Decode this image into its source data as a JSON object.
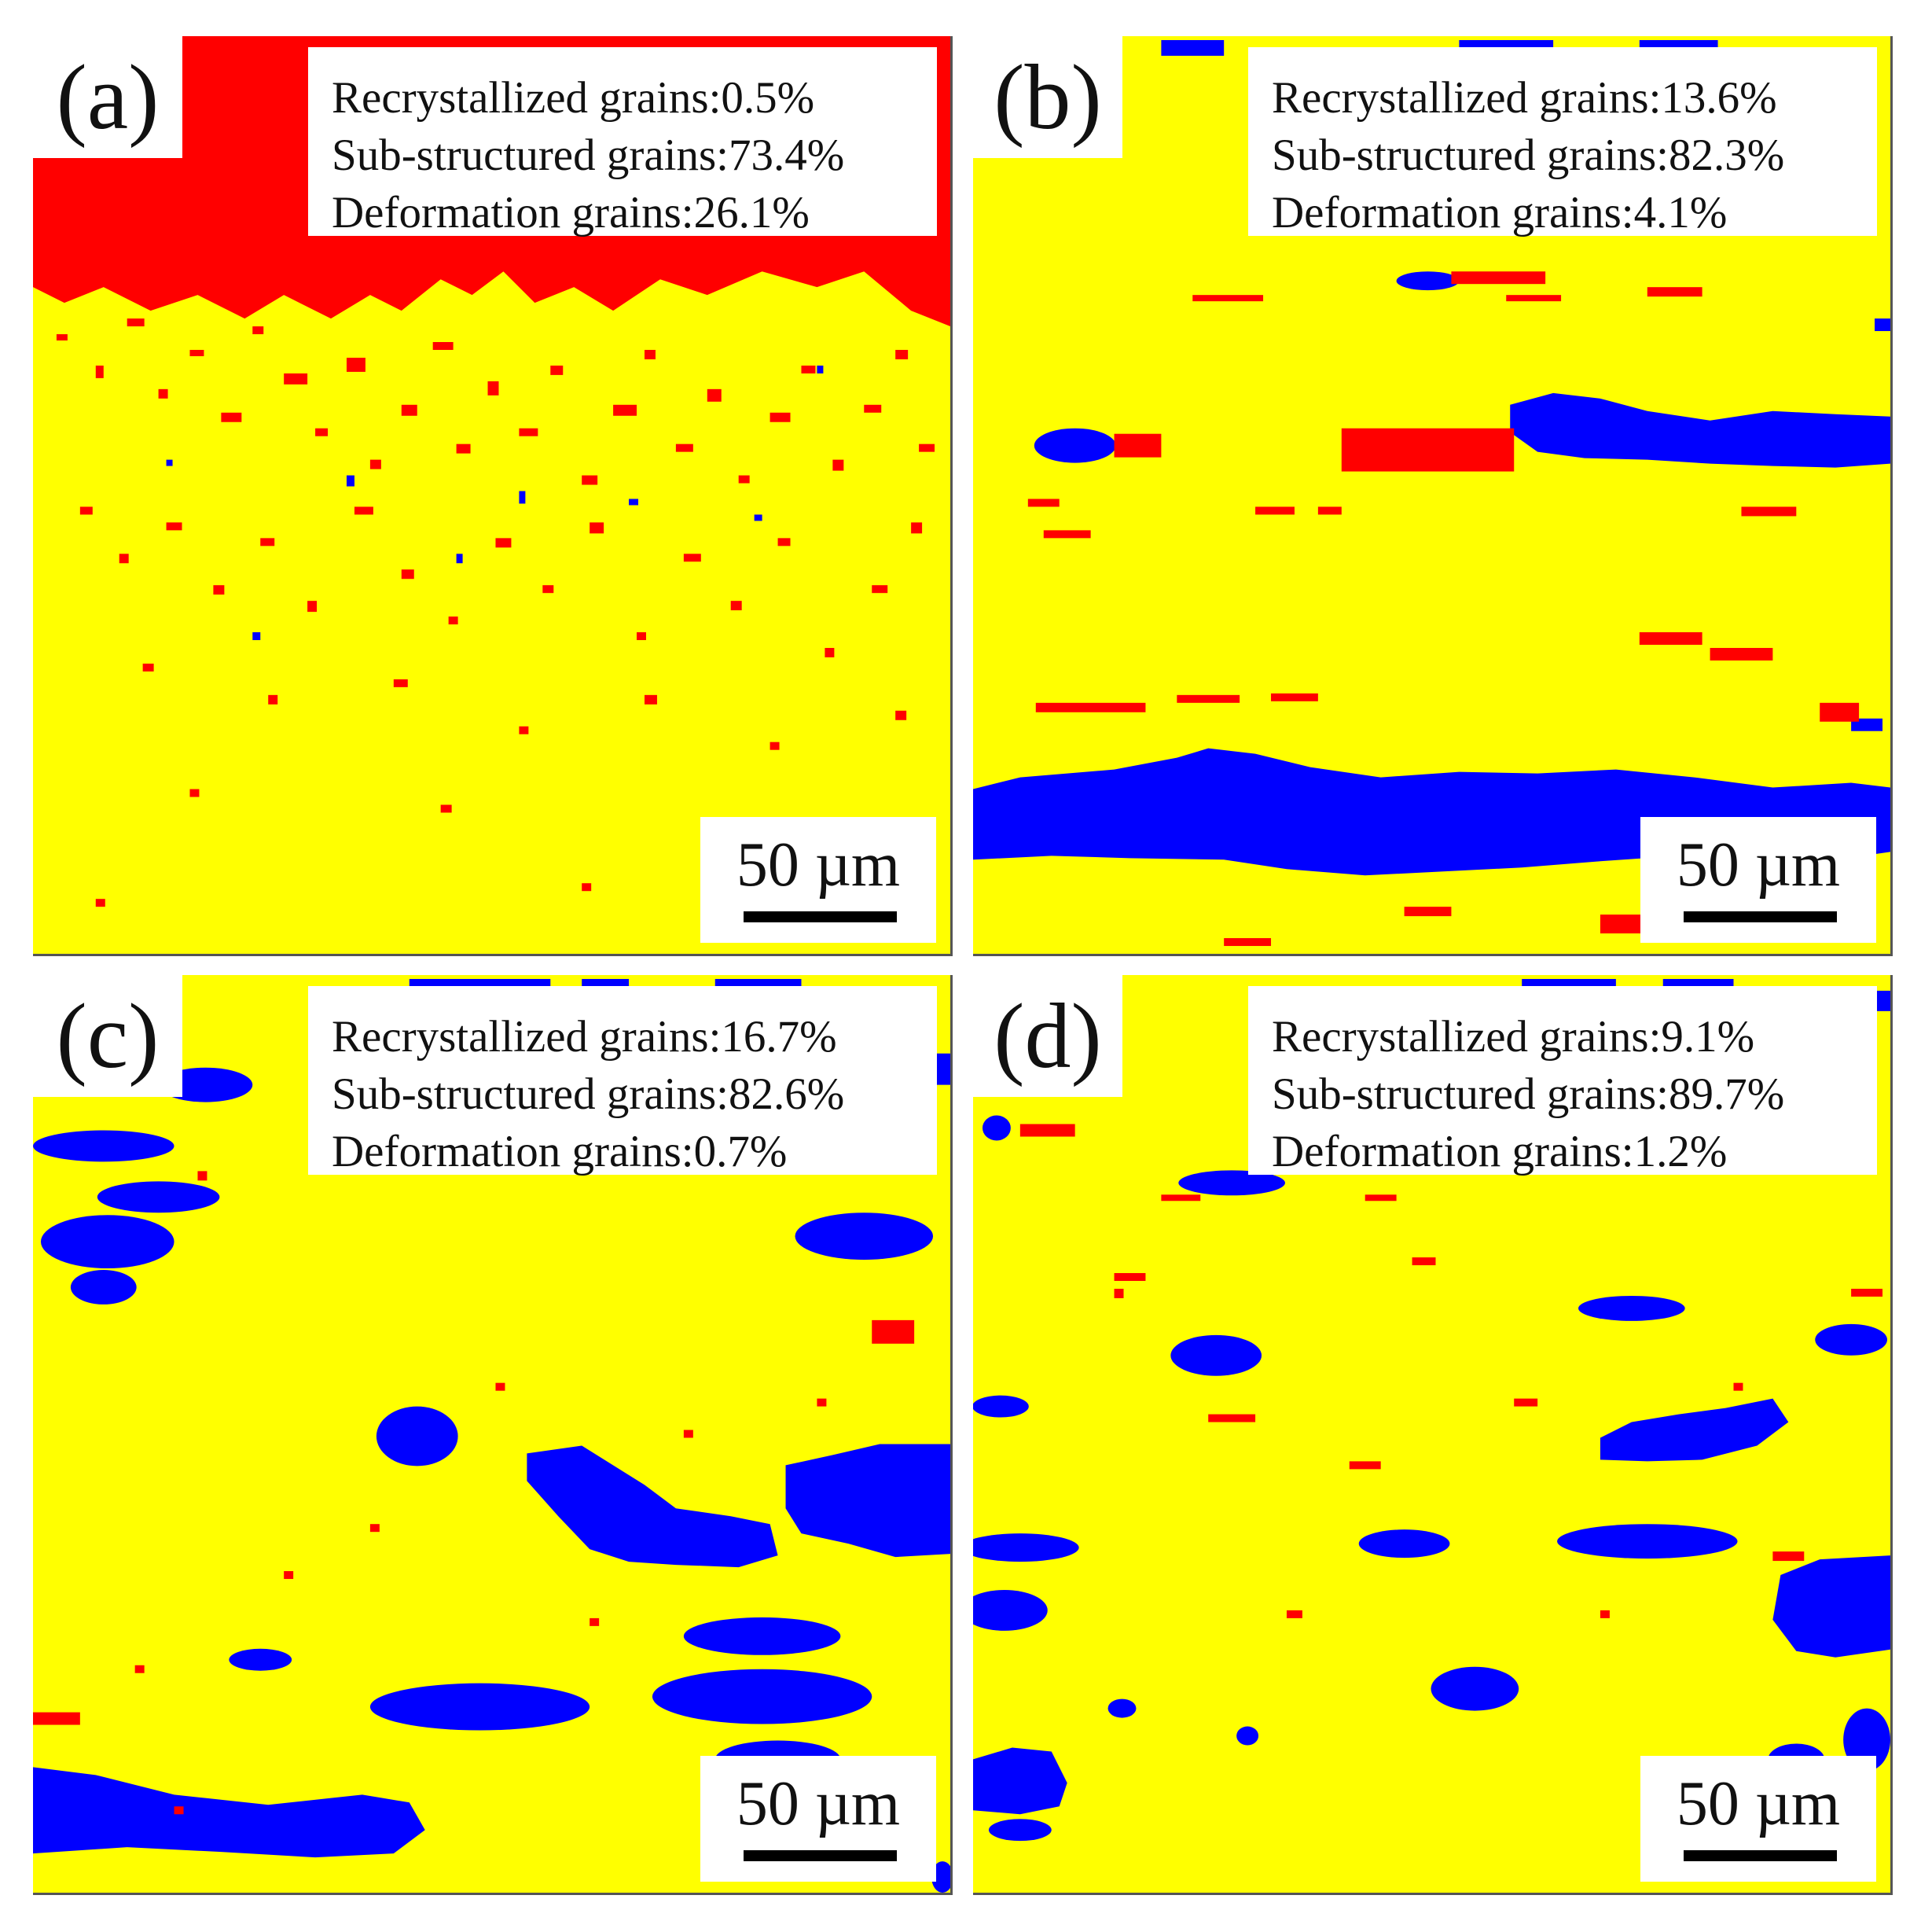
{
  "colors": {
    "sub_structured": "#ffff00",
    "recrystallized": "#0000ff",
    "deformation": "#ff0000",
    "background": "#ffffff"
  },
  "panels": [
    {
      "label": "(a)",
      "stats": [
        "Recrystallized grains:0.5%",
        "Sub-structured grains:73.4%",
        "Deformation grains:26.1%"
      ],
      "scale": "50 µm"
    },
    {
      "label": "(b)",
      "stats": [
        "Recrystallized grains:13.6%",
        "Sub-structured grains:82.3%",
        "Deformation grains:4.1%"
      ],
      "scale": "50 µm"
    },
    {
      "label": "(c)",
      "stats": [
        "Recrystallized grains:16.7%",
        "Sub-structured grains:82.6%",
        "Deformation grains:0.7%"
      ],
      "scale": "50 µm"
    },
    {
      "label": "(d)",
      "stats": [
        "Recrystallized grains:9.1%",
        "Sub-structured grains:89.7%",
        "Deformation grains:1.2%"
      ],
      "scale": "50 µm"
    }
  ]
}
